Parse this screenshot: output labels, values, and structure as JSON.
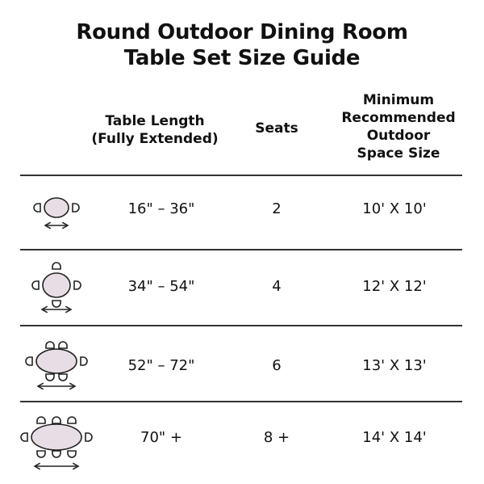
{
  "title_line1": "Round Outdoor Dining Room",
  "title_line2": "Table Set Size Guide",
  "headers": {
    "length_line1": "Table Length",
    "length_line2": "(Fully Extended)",
    "seats": "Seats",
    "space_line1": "Minimum",
    "space_line2": "Recommended",
    "space_line3": "Outdoor",
    "space_line4": "Space Size"
  },
  "rows": [
    {
      "length": "16\" – 36\"",
      "seats": "2",
      "space": "10' X 10'"
    },
    {
      "length": "34\" – 54\"",
      "seats": "4",
      "space": "12' X 12'"
    },
    {
      "length": "52\" – 72\"",
      "seats": "6",
      "space": "13' X 13'"
    },
    {
      "length": "70\" +",
      "seats": "8 +",
      "space": "14' X 14'"
    }
  ],
  "colors": {
    "table_fill": "#e7dde5",
    "stroke": "#222222"
  }
}
